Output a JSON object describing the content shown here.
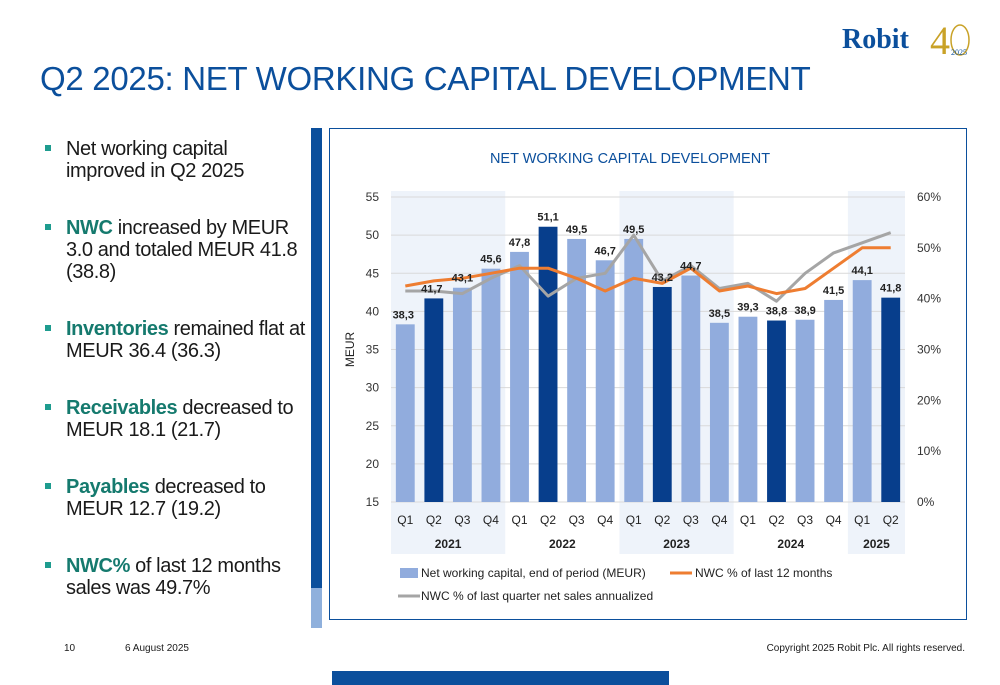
{
  "title": "Q2 2025: NET WORKING CAPITAL DEVELOPMENT",
  "logo": {
    "text": "Robit",
    "anniversary": "4",
    "year": "2025"
  },
  "bullets": [
    {
      "keyword": "",
      "text": "Net working capital improved in Q2 2025"
    },
    {
      "keyword": "NWC",
      "text": " increased by MEUR 3.0 and totaled MEUR 41.8 (38.8)"
    },
    {
      "keyword": "Inventories",
      "text": " remained flat at MEUR 36.4 (36.3)"
    },
    {
      "keyword": "Receivables",
      "text": " decreased to MEUR 18.1 (21.7)"
    },
    {
      "keyword": "Payables",
      "text": " decreased to MEUR 12.7 (19.2)"
    },
    {
      "keyword": "NWC%",
      "text": " of last 12 months sales was 49.7%"
    }
  ],
  "footer": {
    "page": "10",
    "date": "6 August 2025",
    "copyright": "Copyright 2025 Robit Plc. All rights reserved."
  },
  "chart_data": {
    "type": "bar",
    "title": "NET WORKING CAPITAL DEVELOPMENT",
    "ylabel": "MEUR",
    "ylim": [
      15,
      55
    ],
    "yticks": [
      "15",
      "20",
      "25",
      "30",
      "35",
      "40",
      "45",
      "50",
      "55"
    ],
    "y2lim": [
      0,
      60
    ],
    "y2ticks": [
      "0%",
      "10%",
      "20%",
      "30%",
      "40%",
      "50%",
      "60%"
    ],
    "categories": [
      "Q1",
      "Q2",
      "Q3",
      "Q4",
      "Q1",
      "Q2",
      "Q3",
      "Q4",
      "Q1",
      "Q2",
      "Q3",
      "Q4",
      "Q1",
      "Q2",
      "Q3",
      "Q4",
      "Q1",
      "Q2"
    ],
    "years": [
      {
        "label": "2021",
        "span": 4
      },
      {
        "label": "2022",
        "span": 4
      },
      {
        "label": "2023",
        "span": 4
      },
      {
        "label": "2024",
        "span": 4
      },
      {
        "label": "2025",
        "span": 2
      }
    ],
    "series": [
      {
        "name": "Net working capital, end of period (MEUR)",
        "values": [
          38.3,
          41.7,
          43.1,
          45.6,
          47.8,
          51.1,
          49.5,
          46.7,
          49.5,
          43.2,
          44.7,
          38.5,
          39.3,
          38.8,
          38.9,
          41.5,
          44.1,
          41.8
        ],
        "labels": [
          "38,3",
          "41,7",
          "43,1",
          "45,6",
          "47,8",
          "51,1",
          "49,5",
          "46,7",
          "49,5",
          "43,2",
          "44,7",
          "38,5",
          "39,3",
          "38,8",
          "38,9",
          "41,5",
          "44,1",
          "41,8"
        ]
      },
      {
        "name": "NWC % of last 12 months",
        "values": [
          42.5,
          43.5,
          44.0,
          45.0,
          46.0,
          46.0,
          44.0,
          41.5,
          44.0,
          43.0,
          46.0,
          41.5,
          42.5,
          41.0,
          42.0,
          46.0,
          50.0,
          50.0
        ]
      },
      {
        "name": "NWC % of last quarter net sales annualized",
        "values": [
          41.5,
          41.5,
          41.0,
          44.0,
          46.5,
          40.5,
          44.0,
          45.0,
          52.5,
          43.5,
          46.5,
          42.0,
          43.0,
          39.5,
          45.0,
          49.0,
          51.0,
          53.0
        ]
      }
    ],
    "grid": true,
    "legend": "bottom",
    "colors": {
      "bar_light": "#91acdd",
      "bar_dark": "#073e8c",
      "line_12m": "#ee7d31",
      "line_quarter": "#a5a5a5",
      "band": "#eef3fa",
      "title": "#0b4f9c"
    }
  }
}
